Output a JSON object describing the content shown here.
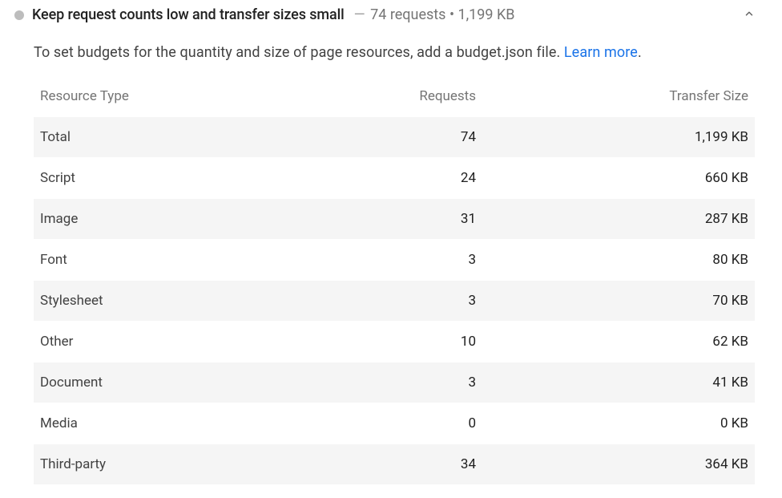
{
  "audit": {
    "title": "Keep request counts low and transfer sizes small",
    "summary_requests": "74 requests",
    "summary_size": "1,199 KB",
    "description_prefix": "To set budgets for the quantity and size of page resources, add a budget.json file. ",
    "learn_more_label": "Learn more",
    "description_suffix": "."
  },
  "table": {
    "columns": {
      "type": "Resource Type",
      "requests": "Requests",
      "size": "Transfer Size"
    },
    "rows": [
      {
        "type": "Total",
        "requests": "74",
        "size": "1,199 KB"
      },
      {
        "type": "Script",
        "requests": "24",
        "size": "660 KB"
      },
      {
        "type": "Image",
        "requests": "31",
        "size": "287 KB"
      },
      {
        "type": "Font",
        "requests": "3",
        "size": "80 KB"
      },
      {
        "type": "Stylesheet",
        "requests": "3",
        "size": "70 KB"
      },
      {
        "type": "Other",
        "requests": "10",
        "size": "62 KB"
      },
      {
        "type": "Document",
        "requests": "3",
        "size": "41 KB"
      },
      {
        "type": "Media",
        "requests": "0",
        "size": "0 KB"
      },
      {
        "type": "Third-party",
        "requests": "34",
        "size": "364 KB"
      }
    ]
  },
  "styling": {
    "status_dot_color": "#bdbdbd",
    "link_color": "#1a73e8",
    "row_alt_bg": "#f5f5f5",
    "header_text_color": "#757575",
    "body_text_color": "#212121",
    "muted_text_color": "#757575"
  }
}
